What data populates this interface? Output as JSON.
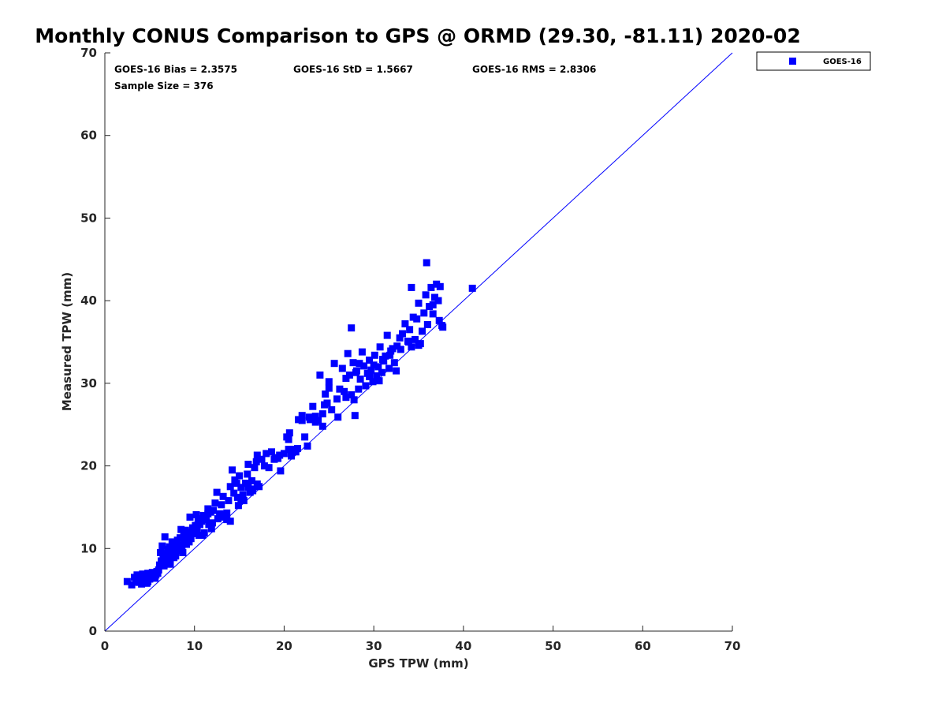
{
  "chart_data": {
    "type": "scatter",
    "title": "Monthly CONUS Comparison to GPS @ ORMD (29.30, -81.11) 2020-02",
    "xlabel": "GPS TPW (mm)",
    "ylabel": "Measured TPW (mm)",
    "xlim": [
      0,
      70
    ],
    "ylim": [
      0,
      70
    ],
    "xticks": [
      "0",
      "10",
      "20",
      "30",
      "40",
      "50",
      "60",
      "70"
    ],
    "yticks": [
      "0",
      "10",
      "20",
      "30",
      "40",
      "50",
      "60",
      "70"
    ],
    "grid": false,
    "legend_position": "outside-top-right",
    "reference_line": {
      "x": [
        0,
        70
      ],
      "y": [
        0,
        70
      ]
    },
    "stats": {
      "bias": "GOES-16 Bias = 2.3575",
      "std": "GOES-16 StD = 1.5667",
      "rms": "GOES-16 RMS = 2.8306",
      "sample_size": "Sample Size = 376"
    },
    "series": [
      {
        "name": "GOES-16",
        "color": "#0000ff",
        "marker": "square",
        "x": [
          2.5,
          3.0,
          3.3,
          3.5,
          3.6,
          3.8,
          3.9,
          4.0,
          4.1,
          4.2,
          4.3,
          4.4,
          4.5,
          4.6,
          4.7,
          4.8,
          4.9,
          5.0,
          5.1,
          5.2,
          5.3,
          5.5,
          5.6,
          5.7,
          5.8,
          6.0,
          6.1,
          6.2,
          6.3,
          6.4,
          6.5,
          6.6,
          6.7,
          6.8,
          6.9,
          7.0,
          7.1,
          7.2,
          7.3,
          7.4,
          7.5,
          7.6,
          7.7,
          7.8,
          7.9,
          8.0,
          8.1,
          8.2,
          8.3,
          8.4,
          8.5,
          8.6,
          8.7,
          8.8,
          8.9,
          9.0,
          9.1,
          9.2,
          9.3,
          9.4,
          9.5,
          9.6,
          9.8,
          10.0,
          10.1,
          10.2,
          10.3,
          10.4,
          10.5,
          10.6,
          10.8,
          11.0,
          11.1,
          11.3,
          11.5,
          11.6,
          11.8,
          12.0,
          12.1,
          12.3,
          12.5,
          12.6,
          12.8,
          13.0,
          13.2,
          13.4,
          13.6,
          13.8,
          14.0,
          14.2,
          14.4,
          14.5,
          14.7,
          14.9,
          15.0,
          15.2,
          15.4,
          15.5,
          15.7,
          15.9,
          16.0,
          16.2,
          16.4,
          16.5,
          16.7,
          16.9,
          17.0,
          17.2,
          17.5,
          17.8,
          18.0,
          18.3,
          18.6,
          19.0,
          19.3,
          19.6,
          20.0,
          20.3,
          20.5,
          20.6,
          20.8,
          21.0,
          21.3,
          21.6,
          22.0,
          22.3,
          22.6,
          22.9,
          23.2,
          23.5,
          23.8,
          24.0,
          24.3,
          24.6,
          24.8,
          25.0,
          25.3,
          25.6,
          25.9,
          26.2,
          26.5,
          26.7,
          26.9,
          27.1,
          27.3,
          27.5,
          27.7,
          27.9,
          28.1,
          28.3,
          28.5,
          28.7,
          28.9,
          29.1,
          29.3,
          29.5,
          29.7,
          29.9,
          30.1,
          30.3,
          30.5,
          30.7,
          30.9,
          31.1,
          31.3,
          31.5,
          31.7,
          31.9,
          32.1,
          32.3,
          32.6,
          32.9,
          33.2,
          33.5,
          33.8,
          34.0,
          34.2,
          34.4,
          34.6,
          34.8,
          35.0,
          35.2,
          35.4,
          35.6,
          35.8,
          36.0,
          36.2,
          36.4,
          36.6,
          36.8,
          37.0,
          37.2,
          37.4,
          37.6,
          37.7,
          41.0,
          35.9,
          27.5,
          30.6,
          26.9,
          34.2,
          33.9,
          4.8,
          6.9,
          8.9,
          11.5,
          14.0,
          16.5,
          22.0,
          25.0,
          28.0,
          31.0,
          35.0,
          12.9,
          9.6,
          20.5,
          24.3,
          27.8,
          15.2,
          18.9,
          7.3,
          10.9,
          13.6,
          17.0,
          23.5,
          29.5,
          32.5,
          36.6,
          5.9,
          8.5,
          11.9,
          21.5,
          26.0,
          30.0,
          33.0,
          19.5,
          16.0,
          14.8,
          22.8,
          24.5,
          28.4,
          31.8,
          36.0,
          37.3
        ],
        "y": [
          6.0,
          5.6,
          6.5,
          6.0,
          6.8,
          5.9,
          6.4,
          6.6,
          5.7,
          6.9,
          6.1,
          6.3,
          6.7,
          6.2,
          5.8,
          7.0,
          6.5,
          6.3,
          6.9,
          6.6,
          7.1,
          7.0,
          6.4,
          6.8,
          7.2,
          7.4,
          8.0,
          9.5,
          8.5,
          10.3,
          8.9,
          7.9,
          11.4,
          9.4,
          8.2,
          9.9,
          8.7,
          10.2,
          8.6,
          9.3,
          10.8,
          9.6,
          8.9,
          10.0,
          9.1,
          10.6,
          11.0,
          9.8,
          10.4,
          11.3,
          12.3,
          10.1,
          9.5,
          11.7,
          10.9,
          12.2,
          10.5,
          11.5,
          12.0,
          10.8,
          13.8,
          11.2,
          12.5,
          11.8,
          12.8,
          14.1,
          12.4,
          13.6,
          11.6,
          12.9,
          13.3,
          14.0,
          11.9,
          13.5,
          14.8,
          12.9,
          14.4,
          13.1,
          14.6,
          15.5,
          16.8,
          13.6,
          14.2,
          15.3,
          16.3,
          14.1,
          13.5,
          15.8,
          17.5,
          19.5,
          16.7,
          18.3,
          17.9,
          15.2,
          18.8,
          17.4,
          16.5,
          15.8,
          17.9,
          19.0,
          20.2,
          16.8,
          18.2,
          17.2,
          19.8,
          20.5,
          21.3,
          17.5,
          20.8,
          20.0,
          21.5,
          19.8,
          21.7,
          21.0,
          20.9,
          19.4,
          21.5,
          23.5,
          23.2,
          24.0,
          21.2,
          22.0,
          21.7,
          25.6,
          26.1,
          23.5,
          22.4,
          25.6,
          27.2,
          26.0,
          25.5,
          31.0,
          24.8,
          28.7,
          27.6,
          30.2,
          26.8,
          32.4,
          28.1,
          29.3,
          31.8,
          29.0,
          30.6,
          33.6,
          31.0,
          28.6,
          32.5,
          26.1,
          31.5,
          29.3,
          30.5,
          33.8,
          32.1,
          29.7,
          31.2,
          32.8,
          31.6,
          30.2,
          33.4,
          30.9,
          32.0,
          34.4,
          31.3,
          32.7,
          33.3,
          35.8,
          31.8,
          33.9,
          34.2,
          32.5,
          34.5,
          35.5,
          36.0,
          37.2,
          35.1,
          36.5,
          34.4,
          38.0,
          35.3,
          37.8,
          39.7,
          34.8,
          36.3,
          38.5,
          40.7,
          37.1,
          39.3,
          41.6,
          38.4,
          40.4,
          42.0,
          40.0,
          41.7,
          37.0,
          36.8,
          41.5,
          44.6,
          36.7,
          30.3,
          28.3,
          41.6,
          35.0,
          6.0,
          9.0,
          11.0,
          14.2,
          13.3,
          17.0,
          25.5,
          29.4,
          31.3,
          32.9,
          34.6,
          13.8,
          12.0,
          22.0,
          26.3,
          28.0,
          16.0,
          20.8,
          8.1,
          11.6,
          14.3,
          17.8,
          25.3,
          30.8,
          31.5,
          39.5,
          7.0,
          9.7,
          12.4,
          22.1,
          25.9,
          32.2,
          34.1,
          21.3,
          17.4,
          16.2,
          25.9,
          27.4,
          32.4,
          33.4,
          37.1,
          37.6
        ]
      }
    ]
  }
}
